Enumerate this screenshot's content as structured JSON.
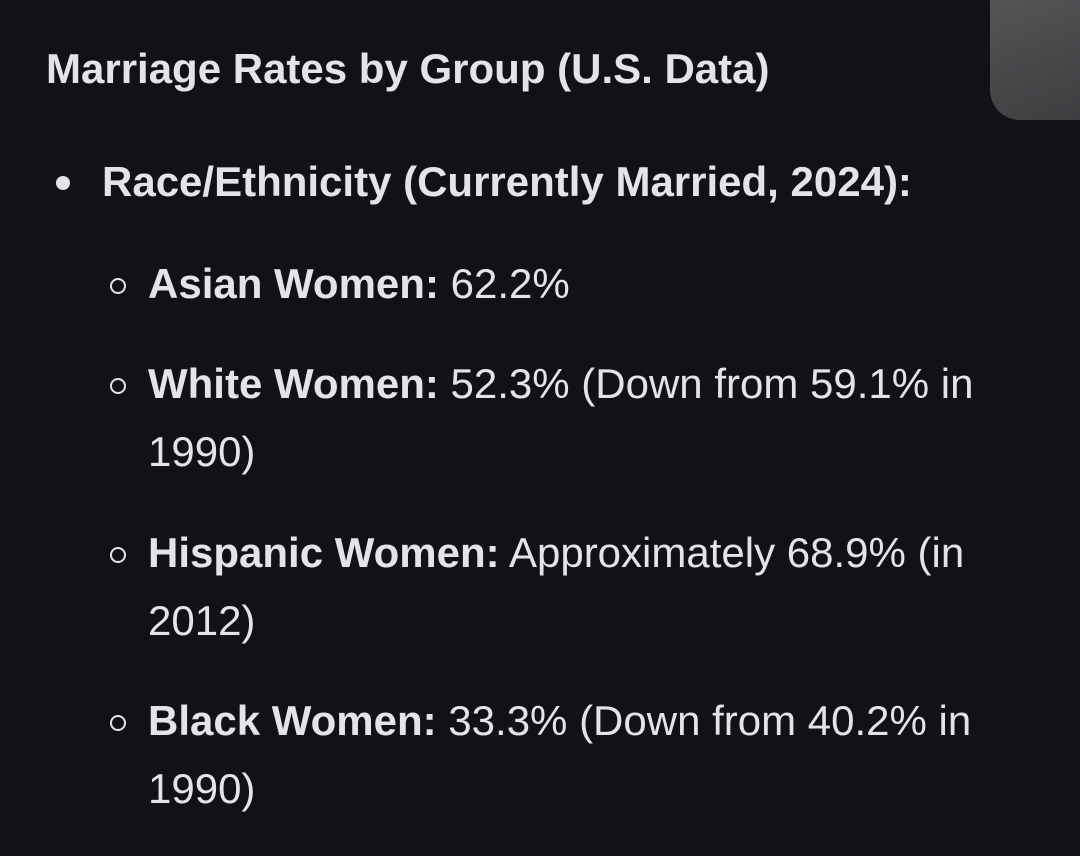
{
  "heading": "Marriage Rates by Group (U.S. Data)",
  "section": {
    "title": "Race/Ethnicity (Currently Married, 2024):",
    "items": [
      {
        "label": "Asian Women:",
        "value": " 62.2%"
      },
      {
        "label": "White Women:",
        "value": " 52.3% (Down from 59.1% in 1990)"
      },
      {
        "label": "Hispanic Women:",
        "value": " Approximately 68.9% (in 2012)"
      },
      {
        "label": "Black Women:",
        "value": " 33.3% (Down from 40.2% in 1990)"
      }
    ]
  },
  "colors": {
    "background": "#121216",
    "text": "#e3e3e8"
  }
}
